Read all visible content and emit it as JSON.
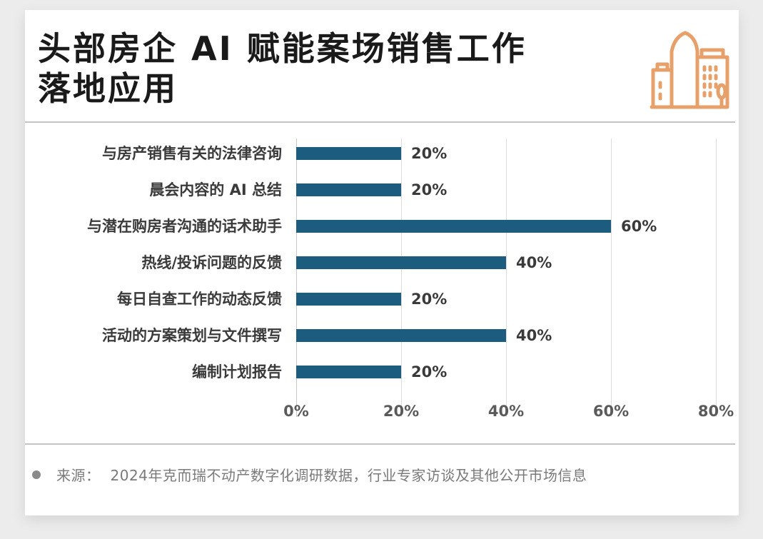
{
  "title": {
    "line1": "头部房企 AI 赋能案场销售工作",
    "line2": "落地应用"
  },
  "icon": {
    "name": "city-buildings-icon",
    "color": "#e8a06a"
  },
  "colors": {
    "bar": "#1c5c7e",
    "text": "#3a3a3a",
    "grid": "#dcdcdc"
  },
  "chart_data": {
    "type": "bar",
    "orientation": "horizontal",
    "title": "头部房企 AI 赋能案场销售工作落地应用",
    "categories": [
      "与房产销售有关的法律咨询",
      "晨会内容的 AI 总结",
      "与潜在购房者沟通的话术助手",
      "热线/投诉问题的反馈",
      "每日自查工作的动态反馈",
      "活动的方案策划与文件撰写",
      "编制计划报告"
    ],
    "values": [
      20,
      20,
      60,
      40,
      20,
      40,
      20
    ],
    "value_labels": [
      "20%",
      "20%",
      "60%",
      "40%",
      "20%",
      "40%",
      "20%"
    ],
    "xlabel": "",
    "ylabel": "",
    "xlim": [
      0,
      80
    ],
    "xticks": [
      "0%",
      "20%",
      "40%",
      "60%",
      "80%"
    ],
    "grid": true,
    "legend": null
  },
  "source": {
    "label": "来源：",
    "text": "2024年克而瑞不动产数字化调研数据，行业专家访谈及其他公开市场信息"
  }
}
